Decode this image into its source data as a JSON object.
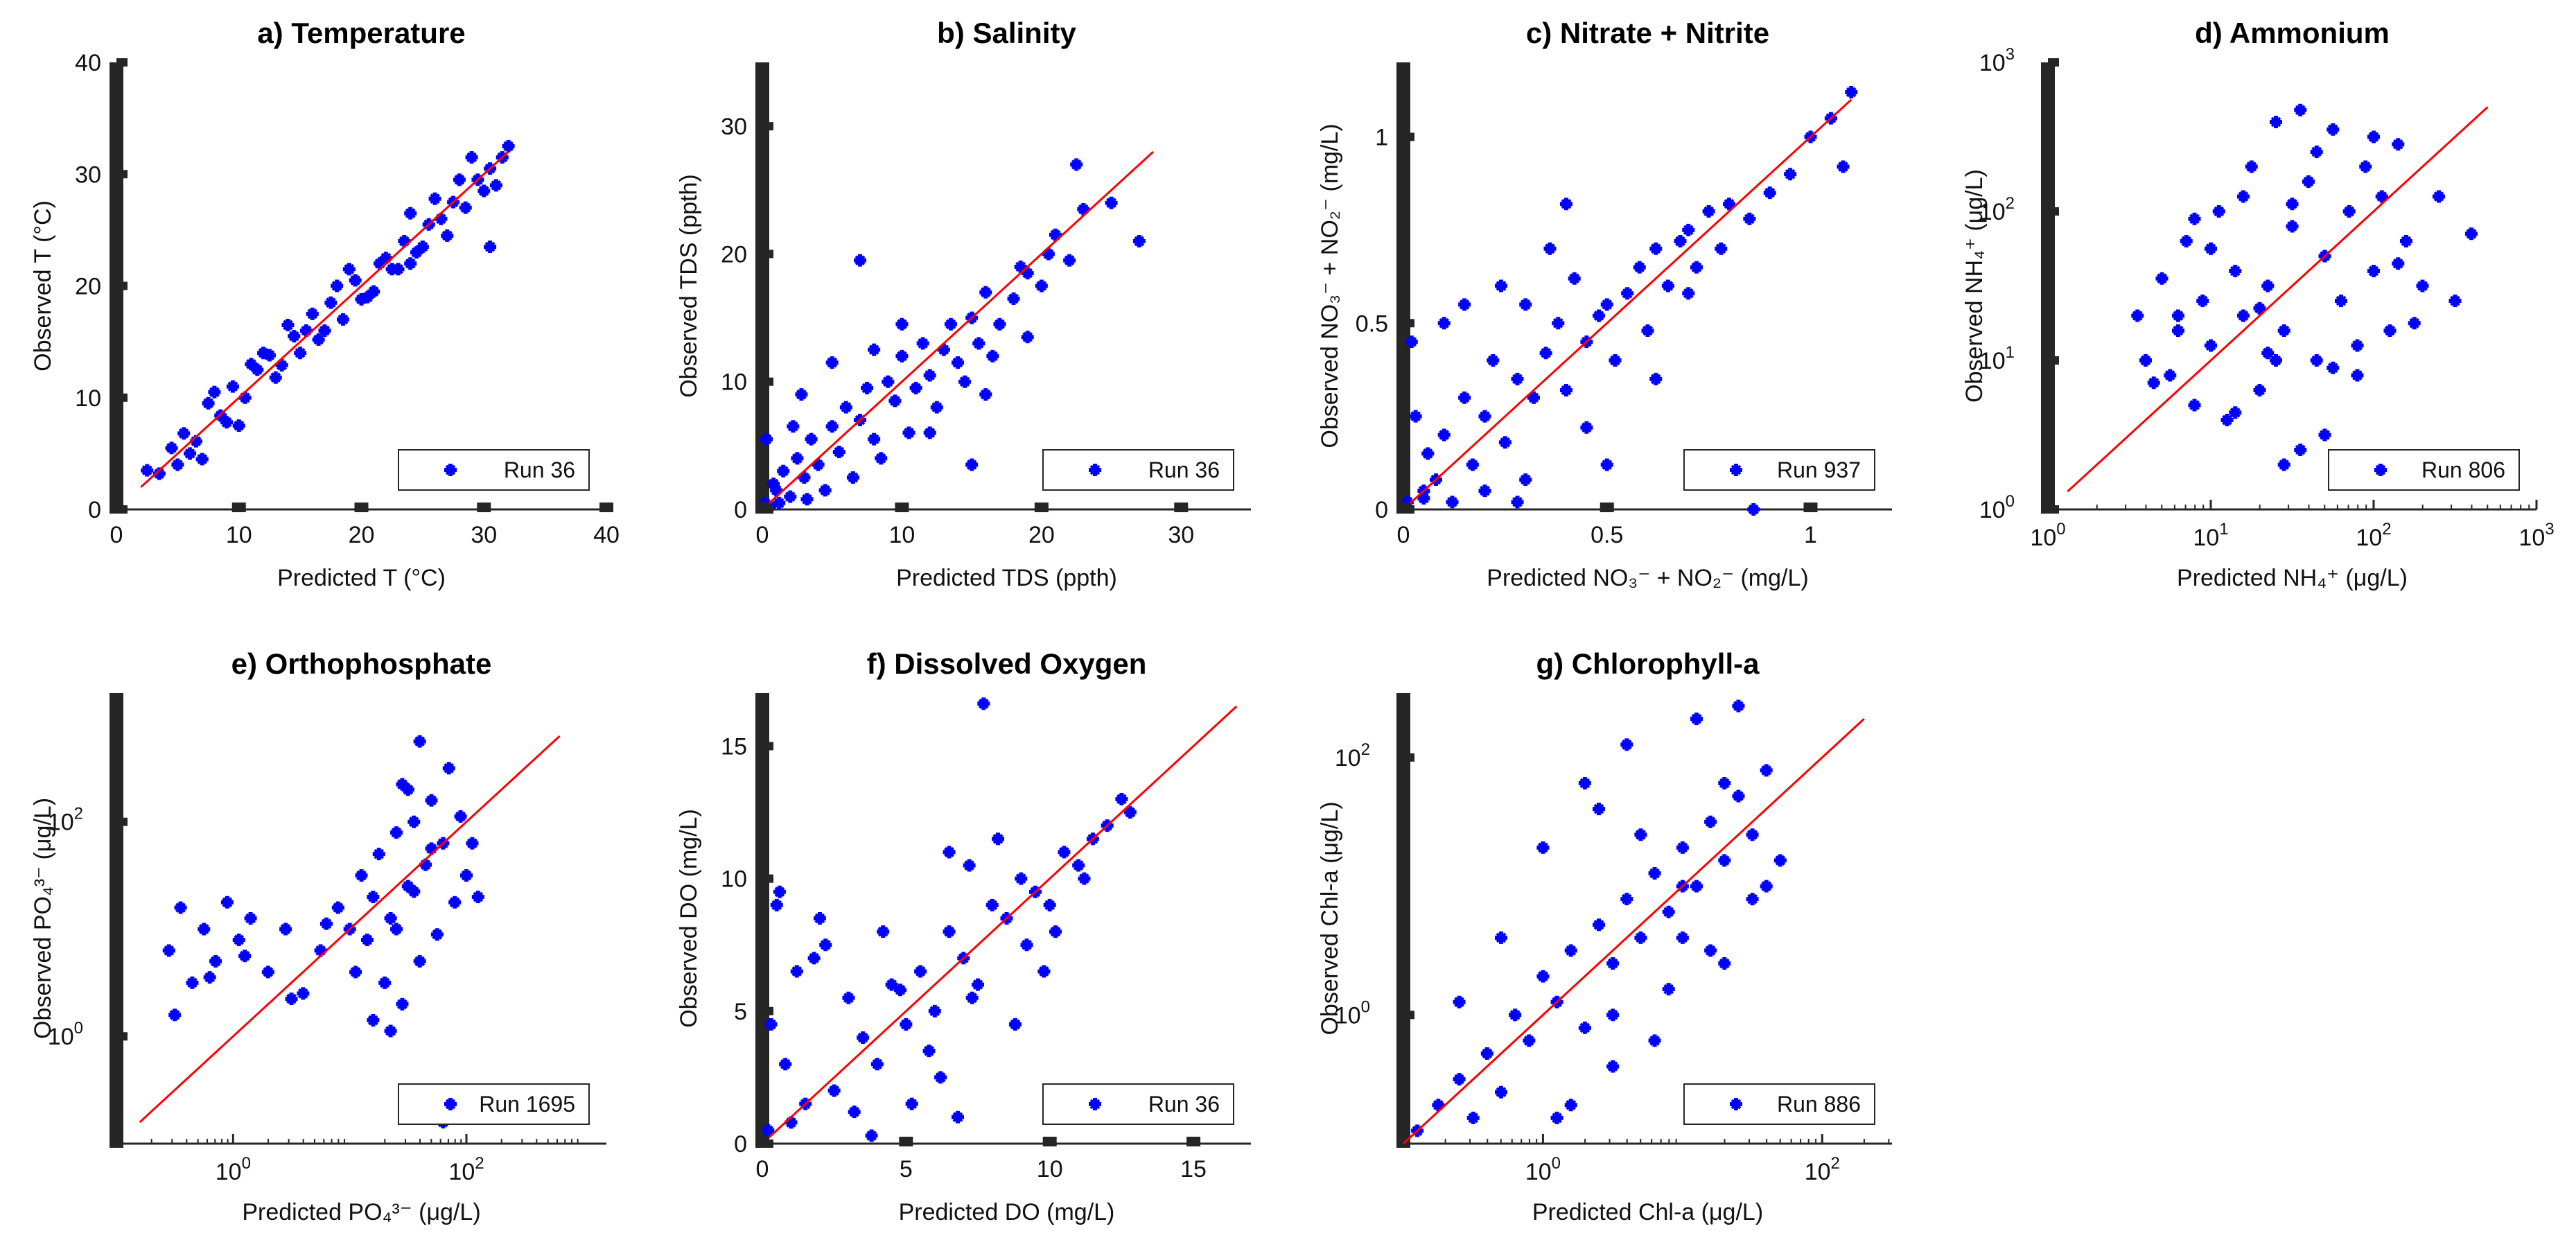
{
  "figure": {
    "marker_color": "#0000ff",
    "line_color": "#ff0000",
    "panel_order": [
      "a",
      "b",
      "c",
      "d",
      "e",
      "f",
      "g"
    ]
  },
  "chart_data": [
    {
      "id": "a",
      "type": "scatter",
      "title": "a) Temperature",
      "xlabel": "Predicted T (°C)",
      "ylabel": "Observed T (°C)",
      "scale": "linear",
      "xlim": [
        0,
        40
      ],
      "ylim": [
        0,
        40
      ],
      "xticks": [
        0,
        10,
        20,
        30,
        40
      ],
      "yticks": [
        0,
        10,
        20,
        30,
        40
      ],
      "xtick_labels": [
        "0",
        "10",
        "20",
        "30",
        "40"
      ],
      "ytick_labels": [
        "0",
        "10",
        "20",
        "30",
        "40"
      ],
      "one_to_one": [
        2,
        32
      ],
      "legend": "Run 36",
      "legend_position": "bottom-right",
      "series": [
        {
          "name": "Run 36",
          "x": [
            2.5,
            3.5,
            4.5,
            5.5,
            6.5,
            7.5,
            8.5,
            9.5,
            10.5,
            11.5,
            12.5,
            13.5,
            14.5,
            15.5,
            16.5,
            17.5,
            18.5,
            19.5,
            20.5,
            21.5,
            22.5,
            23.5,
            24.5,
            25.5,
            26.5,
            27.5,
            28.5,
            29.5,
            30.5,
            31.5,
            32,
            6,
            9,
            12,
            15,
            18,
            21,
            24,
            27,
            30,
            8,
            13,
            17,
            22,
            26,
            29,
            11,
            16,
            20,
            25,
            28,
            14,
            19,
            23,
            30.5,
            10,
            7,
            5,
            24,
            31
          ],
          "y": [
            3.5,
            3.2,
            5.5,
            6.8,
            6.1,
            9.5,
            8.4,
            11.0,
            10.0,
            12.5,
            13.8,
            12.9,
            15.5,
            16.0,
            15.2,
            18.5,
            17.0,
            20.5,
            19.0,
            22.0,
            21.5,
            24.0,
            23.0,
            25.5,
            26.0,
            27.5,
            27.0,
            29.5,
            30.5,
            31.5,
            32.5,
            5.0,
            7.8,
            14.0,
            14.0,
            20.0,
            19.5,
            26.5,
            24.5,
            28.5,
            10.5,
            11.8,
            16.0,
            22.5,
            27.8,
            31.5,
            13.0,
            17.5,
            18.8,
            23.5,
            29.5,
            16.5,
            21.5,
            21.5,
            23.5,
            7.5,
            4.5,
            4.0,
            22.0,
            29.0
          ]
        }
      ]
    },
    {
      "id": "b",
      "type": "scatter",
      "title": "b) Salinity",
      "xlabel": "Predicted TDS (ppth)",
      "ylabel": "Observed TDS (ppth)",
      "scale": "linear",
      "xlim": [
        0,
        35
      ],
      "ylim": [
        0,
        35
      ],
      "xticks": [
        0,
        10,
        20,
        30
      ],
      "yticks": [
        0,
        10,
        20,
        30
      ],
      "xtick_labels": [
        "0",
        "10",
        "20",
        "30"
      ],
      "ytick_labels": [
        "0",
        "10",
        "20",
        "30"
      ],
      "one_to_one": [
        0,
        28
      ],
      "legend": "Run 36",
      "legend_position": "bottom-right",
      "series": [
        {
          "name": "Run 36",
          "x": [
            0.2,
            0.5,
            1,
            1.5,
            2,
            2.5,
            3,
            3.5,
            4,
            5,
            5.5,
            6,
            7,
            7.5,
            8,
            9,
            9.5,
            10,
            11,
            11.5,
            12,
            13,
            13.5,
            14,
            15,
            15.5,
            16,
            17,
            18,
            19,
            20,
            21,
            22,
            23,
            0.3,
            0.8,
            1.2,
            2.2,
            3.2,
            4.5,
            6.5,
            8.5,
            10.5,
            12.5,
            14.5,
            16.5,
            18.5,
            20.5,
            22.5,
            25,
            27,
            7,
            12,
            19,
            16,
            5,
            10,
            15,
            8,
            2.8
          ],
          "y": [
            0.5,
            0.2,
            1.5,
            3.0,
            1.0,
            4.0,
            2.5,
            5.5,
            3.5,
            6.5,
            4.5,
            8.0,
            7.0,
            9.5,
            5.5,
            10.0,
            8.5,
            12.0,
            9.5,
            13.0,
            10.5,
            12.5,
            14.5,
            11.5,
            15.0,
            13.0,
            17.0,
            14.5,
            16.5,
            18.5,
            17.5,
            21.5,
            19.5,
            23.5,
            5.5,
            2.0,
            0.5,
            6.5,
            0.8,
            1.5,
            2.5,
            4.0,
            6.0,
            8.0,
            10.0,
            12.0,
            19.0,
            20.0,
            27.0,
            24.0,
            21.0,
            19.5,
            6.0,
            13.5,
            9.0,
            11.5,
            14.5,
            3.5,
            12.5,
            9.0
          ]
        }
      ]
    },
    {
      "id": "c",
      "type": "scatter",
      "title": "c) Nitrate + Nitrite",
      "xlabel": "Predicted NO₃⁻ + NO₂⁻ (mg/L)",
      "ylabel": "Observed NO₃⁻ + NO₂⁻ (mg/L)",
      "scale": "linear",
      "xlim": [
        0,
        1.2
      ],
      "ylim": [
        0,
        1.2
      ],
      "xticks": [
        0,
        0.5,
        1
      ],
      "yticks": [
        0,
        0.5,
        1
      ],
      "xtick_labels": [
        "0",
        "0.5",
        "1"
      ],
      "ytick_labels": [
        "0",
        "0.5",
        "1"
      ],
      "one_to_one": [
        0,
        1.1
      ],
      "legend": "Run 937",
      "legend_position": "bottom-right",
      "series": [
        {
          "name": "Run 937",
          "x": [
            0.01,
            0.02,
            0.03,
            0.05,
            0.06,
            0.08,
            0.1,
            0.12,
            0.15,
            0.17,
            0.2,
            0.22,
            0.25,
            0.28,
            0.3,
            0.32,
            0.35,
            0.38,
            0.4,
            0.42,
            0.45,
            0.48,
            0.5,
            0.52,
            0.55,
            0.58,
            0.6,
            0.62,
            0.65,
            0.68,
            0.7,
            0.72,
            0.75,
            0.78,
            0.8,
            0.85,
            0.9,
            0.95,
            1.0,
            1.05,
            1.1,
            1.08,
            0.2,
            0.3,
            0.15,
            0.4,
            0.5,
            0.1,
            0.86,
            0.36,
            0.24,
            0.62,
            0.05,
            0.45,
            0.7,
            0.28
          ],
          "y": [
            0.02,
            0.45,
            0.25,
            0.05,
            0.15,
            0.08,
            0.2,
            0.02,
            0.3,
            0.12,
            0.25,
            0.4,
            0.18,
            0.35,
            0.55,
            0.3,
            0.42,
            0.5,
            0.32,
            0.62,
            0.45,
            0.52,
            0.55,
            0.4,
            0.58,
            0.65,
            0.48,
            0.7,
            0.6,
            0.72,
            0.75,
            0.65,
            0.8,
            0.7,
            0.82,
            0.78,
            0.85,
            0.9,
            1.0,
            1.05,
            1.12,
            0.92,
            0.05,
            0.08,
            0.55,
            0.82,
            0.12,
            0.5,
            0.0,
            0.7,
            0.6,
            0.35,
            0.03,
            0.22,
            0.58,
            0.02
          ]
        }
      ]
    },
    {
      "id": "d",
      "type": "scatter",
      "title": "d) Ammonium",
      "xlabel": "Predicted NH₄⁺ (μg/L)",
      "ylabel": "Observed NH₄⁺ (μg/L)",
      "scale": "log",
      "xlim_exp": [
        0,
        3
      ],
      "ylim_exp": [
        0,
        3
      ],
      "xticks_exp": [
        0,
        1,
        2,
        3
      ],
      "yticks_exp": [
        0,
        1,
        2,
        3
      ],
      "xtick_labels": [
        "10",
        "10",
        "10",
        "10"
      ],
      "xtick_exps": [
        "0",
        "1",
        "2",
        "3"
      ],
      "ytick_labels": [
        "10",
        "10",
        "10",
        "10"
      ],
      "ytick_exps": [
        "0",
        "1",
        "2",
        "3"
      ],
      "one_to_one_exp": [
        0.12,
        2.7
      ],
      "legend": "Run 806",
      "legend_position": "bottom-right",
      "series": [
        {
          "name": "Run 806",
          "x": [
            0.55,
            0.6,
            0.7,
            0.75,
            0.8,
            0.85,
            0.9,
            0.95,
            1.0,
            1.05,
            1.1,
            1.15,
            1.2,
            1.25,
            1.3,
            1.35,
            1.4,
            1.45,
            1.5,
            1.55,
            1.6,
            1.65,
            1.7,
            1.75,
            1.8,
            1.85,
            1.9,
            1.95,
            2.0,
            2.05,
            2.1,
            2.15,
            2.2,
            2.3,
            2.4,
            2.5,
            2.6,
            0.65,
            0.9,
            1.15,
            1.4,
            1.65,
            1.9,
            2.15,
            1.0,
            1.3,
            1.5,
            1.7,
            1.2,
            1.45,
            1.75,
            2.0,
            1.35,
            1.55,
            2.25,
            0.8
          ],
          "y": [
            1.3,
            1.0,
            1.55,
            0.9,
            1.2,
            1.8,
            0.7,
            1.4,
            1.1,
            2.0,
            0.6,
            1.6,
            1.3,
            2.3,
            0.8,
            1.5,
            2.6,
            1.2,
            1.9,
            0.4,
            2.2,
            1.0,
            1.7,
            2.55,
            1.4,
            2.0,
            0.9,
            2.3,
            1.6,
            2.1,
            1.2,
            2.45,
            1.8,
            1.5,
            2.1,
            1.4,
            1.85,
            0.85,
            1.95,
            0.65,
            1.0,
            2.4,
            1.1,
            1.65,
            1.75,
            1.35,
            2.05,
            0.5,
            2.1,
            0.3,
            0.95,
            2.5,
            1.05,
            2.68,
            1.25,
            1.3
          ]
        }
      ]
    },
    {
      "id": "e",
      "type": "scatter",
      "title": "e) Orthophosphate",
      "xlabel": "Predicted PO₄³⁻ (μg/L)",
      "ylabel": "Observed PO₄³⁻ (μg/L)",
      "scale": "log",
      "xlim_exp": [
        -1,
        3.2
      ],
      "ylim_exp": [
        -1,
        3.2
      ],
      "xticks_exp": [
        0,
        2
      ],
      "yticks_exp": [
        0,
        2
      ],
      "xtick_labels": [
        "10",
        "10"
      ],
      "xtick_exps": [
        "0",
        "2"
      ],
      "ytick_labels": [
        "10",
        "10"
      ],
      "ytick_exps": [
        "0",
        "2"
      ],
      "one_to_one_exp": [
        -0.8,
        2.8
      ],
      "legend": "Run 1695",
      "legend_position": "bottom-right",
      "series": [
        {
          "name": "Run 1695",
          "x": [
            -0.55,
            -0.45,
            -0.35,
            -0.25,
            -0.15,
            -0.05,
            0.05,
            0.15,
            0.3,
            0.45,
            0.6,
            0.75,
            0.9,
            1.0,
            1.05,
            1.1,
            1.15,
            1.2,
            1.25,
            1.3,
            1.35,
            1.4,
            1.45,
            1.5,
            1.55,
            1.6,
            1.65,
            1.7,
            1.75,
            1.8,
            1.85,
            1.9,
            1.95,
            2.0,
            2.05,
            2.1,
            -0.5,
            -0.2,
            0.1,
            0.5,
            0.8,
            1.2,
            1.4,
            1.6,
            1.8,
            1.5,
            1.7,
            1.35,
            1.55,
            1.45
          ],
          "y": [
            0.8,
            1.2,
            0.5,
            1.0,
            0.7,
            1.25,
            0.9,
            1.1,
            0.6,
            1.0,
            0.4,
            0.8,
            1.2,
            1.0,
            0.6,
            1.5,
            0.9,
            1.3,
            1.7,
            0.5,
            1.1,
            1.9,
            0.3,
            1.4,
            2.0,
            0.7,
            1.6,
            2.2,
            0.95,
            1.8,
            2.5,
            1.25,
            2.05,
            1.5,
            1.8,
            1.3,
            0.2,
            0.55,
            0.75,
            0.35,
            1.05,
            0.15,
            1.0,
            2.75,
            -0.8,
            2.3,
            1.75,
            0.05,
            1.35,
            2.35
          ]
        }
      ]
    },
    {
      "id": "f",
      "type": "scatter",
      "title": "f) Dissolved Oxygen",
      "xlabel": "Predicted DO (mg/L)",
      "ylabel": "Observed DO (mg/L)",
      "scale": "linear",
      "xlim": [
        0,
        17
      ],
      "ylim": [
        0,
        17
      ],
      "xticks": [
        0,
        5,
        10,
        15
      ],
      "yticks": [
        0,
        5,
        10,
        15
      ],
      "xtick_labels": [
        "0",
        "5",
        "10",
        "15"
      ],
      "ytick_labels": [
        "0",
        "5",
        "10",
        "15"
      ],
      "one_to_one": [
        0,
        16.5
      ],
      "legend": "Run 36",
      "legend_position": "bottom-right",
      "series": [
        {
          "name": "Run 36",
          "x": [
            0.2,
            0.5,
            0.8,
            1.2,
            1.5,
            2.0,
            2.5,
            3.0,
            3.5,
            4.0,
            4.5,
            5.0,
            5.5,
            6.0,
            6.5,
            7.0,
            7.5,
            8.0,
            8.5,
            9.0,
            9.5,
            10.0,
            10.5,
            11.0,
            11.5,
            12.0,
            12.5,
            12.8,
            0.3,
            1.0,
            2.2,
            3.2,
            4.2,
            5.2,
            6.2,
            7.2,
            8.2,
            9.2,
            10.2,
            6.8,
            7.7,
            5.8,
            8.8,
            9.8,
            0.6,
            1.8,
            3.8,
            4.8,
            11.2,
            6.5,
            7.3
          ],
          "y": [
            0.5,
            9.0,
            3.0,
            6.5,
            1.5,
            8.5,
            2.0,
            5.5,
            4.0,
            3.0,
            6.0,
            4.5,
            6.5,
            5.0,
            8.0,
            7.0,
            6.0,
            9.0,
            8.5,
            10.0,
            9.5,
            9.0,
            11.0,
            10.5,
            11.5,
            12.0,
            13.0,
            12.5,
            4.5,
            0.8,
            7.5,
            1.2,
            8.0,
            1.5,
            2.5,
            10.5,
            11.5,
            7.5,
            8.0,
            1.0,
            16.6,
            3.5,
            4.5,
            6.5,
            9.5,
            7.0,
            0.3,
            5.8,
            10.0,
            11.0,
            5.5
          ]
        }
      ]
    },
    {
      "id": "g",
      "type": "scatter",
      "title": "g) Chlorophyll-a",
      "xlabel": "Predicted Chl-a (μg/L)",
      "ylabel": "Observed Chl-a (μg/L)",
      "scale": "log",
      "xlim_exp": [
        -1,
        2.5
      ],
      "ylim_exp": [
        -1,
        2.5
      ],
      "xticks_exp": [
        0,
        2
      ],
      "yticks_exp": [
        0,
        2
      ],
      "xtick_labels": [
        "10",
        "10"
      ],
      "xtick_exps": [
        "0",
        "2"
      ],
      "ytick_labels": [
        "10",
        "10"
      ],
      "ytick_exps": [
        "0",
        "2"
      ],
      "one_to_one_exp": [
        -1.0,
        2.3
      ],
      "legend": "Run 886",
      "legend_position": "bottom-right",
      "series": [
        {
          "name": "Run 886",
          "x": [
            -0.9,
            -0.75,
            -0.6,
            -0.5,
            -0.4,
            -0.3,
            -0.2,
            -0.1,
            0.0,
            0.1,
            0.2,
            0.3,
            0.4,
            0.5,
            0.6,
            0.7,
            0.8,
            0.9,
            1.0,
            1.1,
            1.2,
            1.3,
            1.4,
            1.5,
            1.6,
            1.7,
            -0.3,
            0.0,
            0.3,
            0.6,
            0.9,
            1.2,
            1.5,
            0.2,
            0.5,
            0.8,
            1.1,
            1.4,
            0.4,
            0.7,
            1.0,
            1.3,
            0.5,
            1.0,
            -0.6,
            1.6,
            0.1,
            1.3
          ],
          "y": [
            -0.9,
            -0.7,
            -0.5,
            -0.8,
            -0.3,
            -0.6,
            0.0,
            -0.2,
            0.3,
            0.1,
            0.5,
            -0.1,
            0.7,
            0.4,
            0.9,
            0.6,
            1.1,
            0.8,
            1.3,
            1.0,
            1.5,
            1.2,
            1.7,
            1.4,
            1.9,
            1.2,
            0.6,
            1.3,
            1.8,
            2.1,
            0.2,
            0.5,
            0.9,
            -0.7,
            -0.4,
            -0.2,
            2.3,
            2.4,
            1.6,
            1.4,
            1.0,
            1.8,
            0.0,
            0.6,
            0.1,
            1.0,
            -0.8,
            0.4
          ]
        }
      ]
    }
  ]
}
